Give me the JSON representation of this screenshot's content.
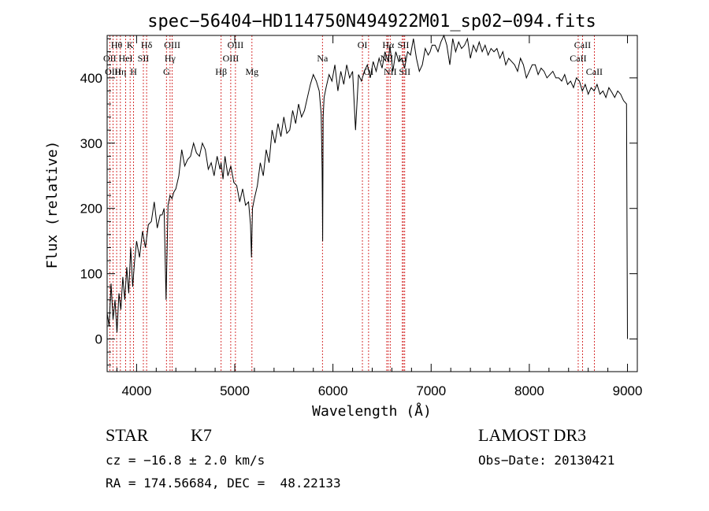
{
  "chart_data": {
    "type": "line",
    "title": "spec−56404−HD114750N494922M01_sp02−094.fits",
    "xlabel": "Wavelength (Å)",
    "ylabel": "Flux (relative)",
    "xlim": [
      3700,
      9100
    ],
    "ylim": [
      -50,
      465
    ],
    "x_ticks": [
      4000,
      5000,
      6000,
      7000,
      8000,
      9000
    ],
    "y_ticks": [
      0,
      100,
      200,
      300,
      400
    ],
    "grid": false,
    "series": [
      {
        "x": [
          3700,
          3720,
          3740,
          3760,
          3780,
          3800,
          3820,
          3840,
          3860,
          3880,
          3900,
          3920,
          3940,
          3960,
          3980,
          4000,
          4030,
          4060,
          4090,
          4120,
          4150,
          4180,
          4210,
          4240,
          4260,
          4280,
          4300,
          4320,
          4340,
          4360,
          4380,
          4400,
          4430,
          4460,
          4490,
          4520,
          4550,
          4580,
          4610,
          4640,
          4670,
          4700,
          4730,
          4760,
          4790,
          4820,
          4850,
          4860,
          4880,
          4900,
          4930,
          4960,
          4990,
          5020,
          5050,
          5080,
          5110,
          5140,
          5160,
          5170,
          5180,
          5200,
          5230,
          5260,
          5290,
          5320,
          5350,
          5380,
          5410,
          5440,
          5470,
          5500,
          5530,
          5560,
          5590,
          5620,
          5650,
          5680,
          5710,
          5740,
          5770,
          5800,
          5830,
          5860,
          5880,
          5890,
          5895,
          5900,
          5910,
          5930,
          5960,
          5990,
          6020,
          6050,
          6080,
          6110,
          6140,
          6170,
          6200,
          6230,
          6260,
          6290,
          6320,
          6350,
          6380,
          6410,
          6440,
          6470,
          6500,
          6530,
          6550,
          6565,
          6580,
          6610,
          6640,
          6670,
          6700,
          6730,
          6760,
          6790,
          6820,
          6850,
          6880,
          6910,
          6940,
          6970,
          6990,
          7010,
          7040,
          7070,
          7100,
          7130,
          7160,
          7190,
          7220,
          7250,
          7280,
          7310,
          7340,
          7370,
          7400,
          7430,
          7460,
          7490,
          7520,
          7550,
          7580,
          7610,
          7640,
          7670,
          7700,
          7730,
          7760,
          7790,
          7820,
          7850,
          7880,
          7910,
          7940,
          7970,
          8000,
          8030,
          8060,
          8090,
          8120,
          8150,
          8180,
          8210,
          8240,
          8270,
          8300,
          8330,
          8360,
          8390,
          8420,
          8450,
          8480,
          8510,
          8540,
          8570,
          8600,
          8630,
          8660,
          8690,
          8720,
          8750,
          8780,
          8810,
          8840,
          8870,
          8900,
          8930,
          8960,
          8990,
          9000
        ],
        "y": [
          40,
          20,
          85,
          30,
          60,
          10,
          70,
          45,
          95,
          60,
          110,
          70,
          140,
          80,
          120,
          150,
          125,
          165,
          140,
          175,
          180,
          210,
          170,
          190,
          190,
          200,
          60,
          205,
          220,
          215,
          225,
          230,
          250,
          290,
          265,
          275,
          280,
          300,
          285,
          280,
          300,
          290,
          260,
          270,
          250,
          280,
          260,
          270,
          245,
          280,
          250,
          265,
          240,
          235,
          210,
          230,
          205,
          210,
          175,
          125,
          200,
          215,
          235,
          270,
          250,
          290,
          270,
          320,
          300,
          330,
          310,
          340,
          315,
          320,
          350,
          330,
          360,
          340,
          350,
          370,
          390,
          405,
          395,
          380,
          345,
          260,
          150,
          340,
          370,
          385,
          405,
          395,
          420,
          380,
          410,
          390,
          420,
          400,
          410,
          320,
          405,
          395,
          410,
          420,
          400,
          425,
          410,
          430,
          415,
          440,
          430,
          425,
          450,
          410,
          440,
          425,
          430,
          415,
          440,
          435,
          460,
          430,
          410,
          420,
          445,
          435,
          440,
          450,
          450,
          440,
          455,
          465,
          450,
          420,
          460,
          440,
          455,
          445,
          450,
          460,
          430,
          450,
          440,
          455,
          440,
          450,
          435,
          445,
          440,
          445,
          430,
          440,
          420,
          430,
          425,
          420,
          410,
          430,
          420,
          400,
          410,
          420,
          420,
          405,
          415,
          410,
          400,
          405,
          410,
          400,
          400,
          395,
          405,
          390,
          395,
          385,
          400,
          395,
          380,
          390,
          375,
          385,
          380,
          390,
          375,
          380,
          370,
          385,
          378,
          370,
          380,
          375,
          365,
          360,
          0
        ]
      }
    ],
    "line_markers": [
      {
        "label": "Hθ",
        "x": 3797,
        "row": 1
      },
      {
        "label": "OII",
        "x": 3727,
        "row": 2
      },
      {
        "label": "OIII",
        "x": 3760,
        "row": 3
      },
      {
        "label": "Hη",
        "x": 3835,
        "row": 3
      },
      {
        "label": "K",
        "x": 3934,
        "row": 1
      },
      {
        "label": "HeI",
        "x": 3889,
        "row": 2
      },
      {
        "label": "H",
        "x": 3969,
        "row": 3
      },
      {
        "label": "SII",
        "x": 4069,
        "row": 2
      },
      {
        "label": "Hδ",
        "x": 4102,
        "row": 1
      },
      {
        "label": "OIII",
        "x": 4363,
        "row": 1
      },
      {
        "label": "Hγ",
        "x": 4341,
        "row": 2
      },
      {
        "label": "G",
        "x": 4304,
        "row": 3
      },
      {
        "label": "Hβ",
        "x": 4861,
        "row": 3
      },
      {
        "label": "OIII",
        "x": 4959,
        "row": 2
      },
      {
        "label": "OIII",
        "x": 5007,
        "row": 1
      },
      {
        "label": "Mg",
        "x": 5175,
        "row": 3
      },
      {
        "label": "Na",
        "x": 5893,
        "row": 2
      },
      {
        "label": "OI",
        "x": 6300,
        "row": 1
      },
      {
        "label": "OI",
        "x": 6363,
        "row": 3
      },
      {
        "label": "NII",
        "x": 6548,
        "row": 2
      },
      {
        "label": "Hα",
        "x": 6563,
        "row": 1
      },
      {
        "label": "NII",
        "x": 6583,
        "row": 3
      },
      {
        "label": "Li",
        "x": 6707,
        "row": 2
      },
      {
        "label": "SII",
        "x": 6717,
        "row": 1
      },
      {
        "label": "SII",
        "x": 6731,
        "row": 3
      },
      {
        "label": "CaII",
        "x": 8498,
        "row": 2
      },
      {
        "label": "CaII",
        "x": 8542,
        "row": 1
      },
      {
        "label": "CaII",
        "x": 8662,
        "row": 3
      }
    ]
  },
  "info": {
    "object_class": "STAR",
    "subclass": "K7",
    "survey": "LAMOST DR3",
    "cz": "cz = −16.8 ± 2.0 km/s",
    "obs_date": "Obs−Date: 20130421",
    "coords": "RA = 174.56684, DEC =  48.22133"
  },
  "colors": {
    "spectrum": "#000000",
    "line_markers": "#cc0000",
    "background": "#ffffff"
  }
}
